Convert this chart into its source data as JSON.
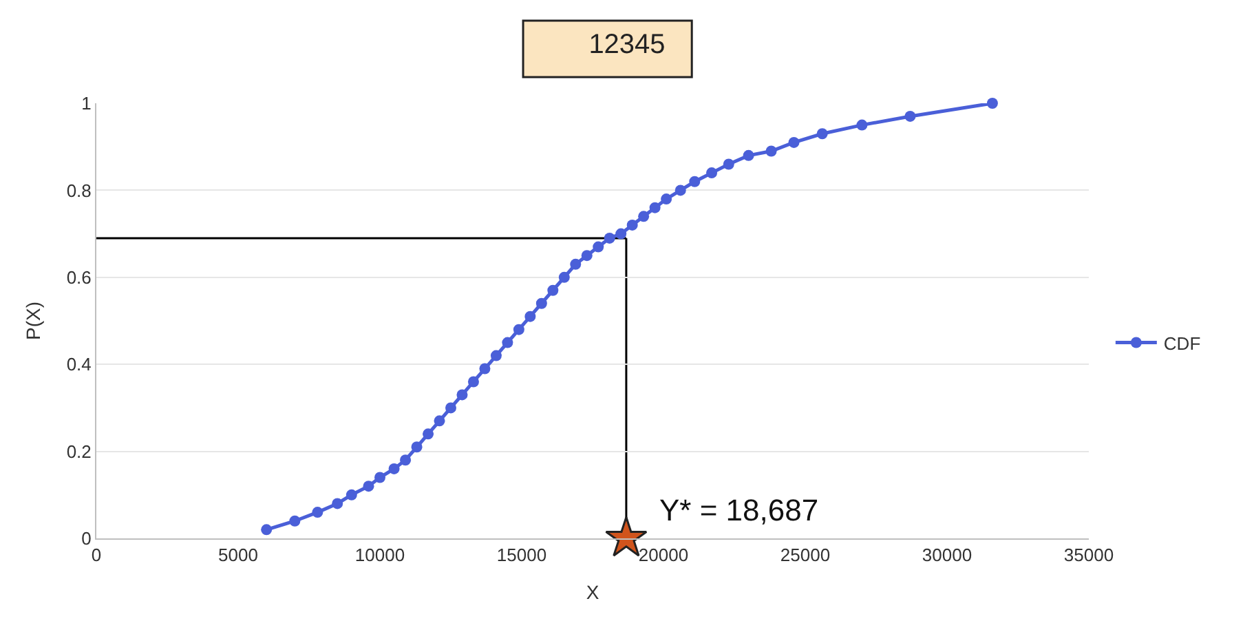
{
  "chart_data": {
    "type": "line",
    "title": "12345",
    "xlabel": "X",
    "ylabel": "P(X)",
    "xlim": [
      0,
      35000
    ],
    "xticks": [
      0,
      5000,
      10000,
      15000,
      20000,
      25000,
      30000,
      35000
    ],
    "ylim": [
      0,
      1
    ],
    "yticks": [
      0,
      0.2,
      0.4,
      0.6,
      0.8,
      1
    ],
    "grid": "y",
    "legend": "right",
    "marker": "circle",
    "line_style": "solid",
    "series": [
      {
        "name": "CDF",
        "color": "#4a5fd8",
        "x": [
          6000,
          7000,
          7800,
          8500,
          9000,
          9600,
          10000,
          10500,
          10900,
          11300,
          11700,
          12100,
          12500,
          12900,
          13300,
          13700,
          14100,
          14500,
          14900,
          15300,
          15700,
          16100,
          16500,
          16900,
          17300,
          17700,
          18100,
          18500,
          18900,
          19300,
          19700,
          20100,
          20600,
          21100,
          21700,
          22300,
          23000,
          23800,
          24600,
          25600,
          27000,
          28700,
          31600
        ],
        "values": [
          0.02,
          0.04,
          0.06,
          0.08,
          0.1,
          0.12,
          0.14,
          0.16,
          0.18,
          0.21,
          0.24,
          0.27,
          0.3,
          0.33,
          0.36,
          0.39,
          0.42,
          0.45,
          0.48,
          0.51,
          0.54,
          0.57,
          0.6,
          0.63,
          0.65,
          0.67,
          0.69,
          0.7,
          0.72,
          0.74,
          0.76,
          0.78,
          0.8,
          0.82,
          0.84,
          0.86,
          0.88,
          0.89,
          0.91,
          0.93,
          0.95,
          0.97,
          1.0
        ]
      },
      {
        "type": "scatter",
        "marker": "star",
        "color": "#d0541c",
        "x": [
          18687
        ],
        "values": [
          0
        ]
      }
    ],
    "ref_lines": [
      {
        "axis": "x",
        "value": 18687,
        "color": "#000000"
      },
      {
        "axis": "y",
        "value": 0.69,
        "color": "#000000"
      }
    ],
    "annotations": [
      "Y* = 18,687"
    ]
  }
}
